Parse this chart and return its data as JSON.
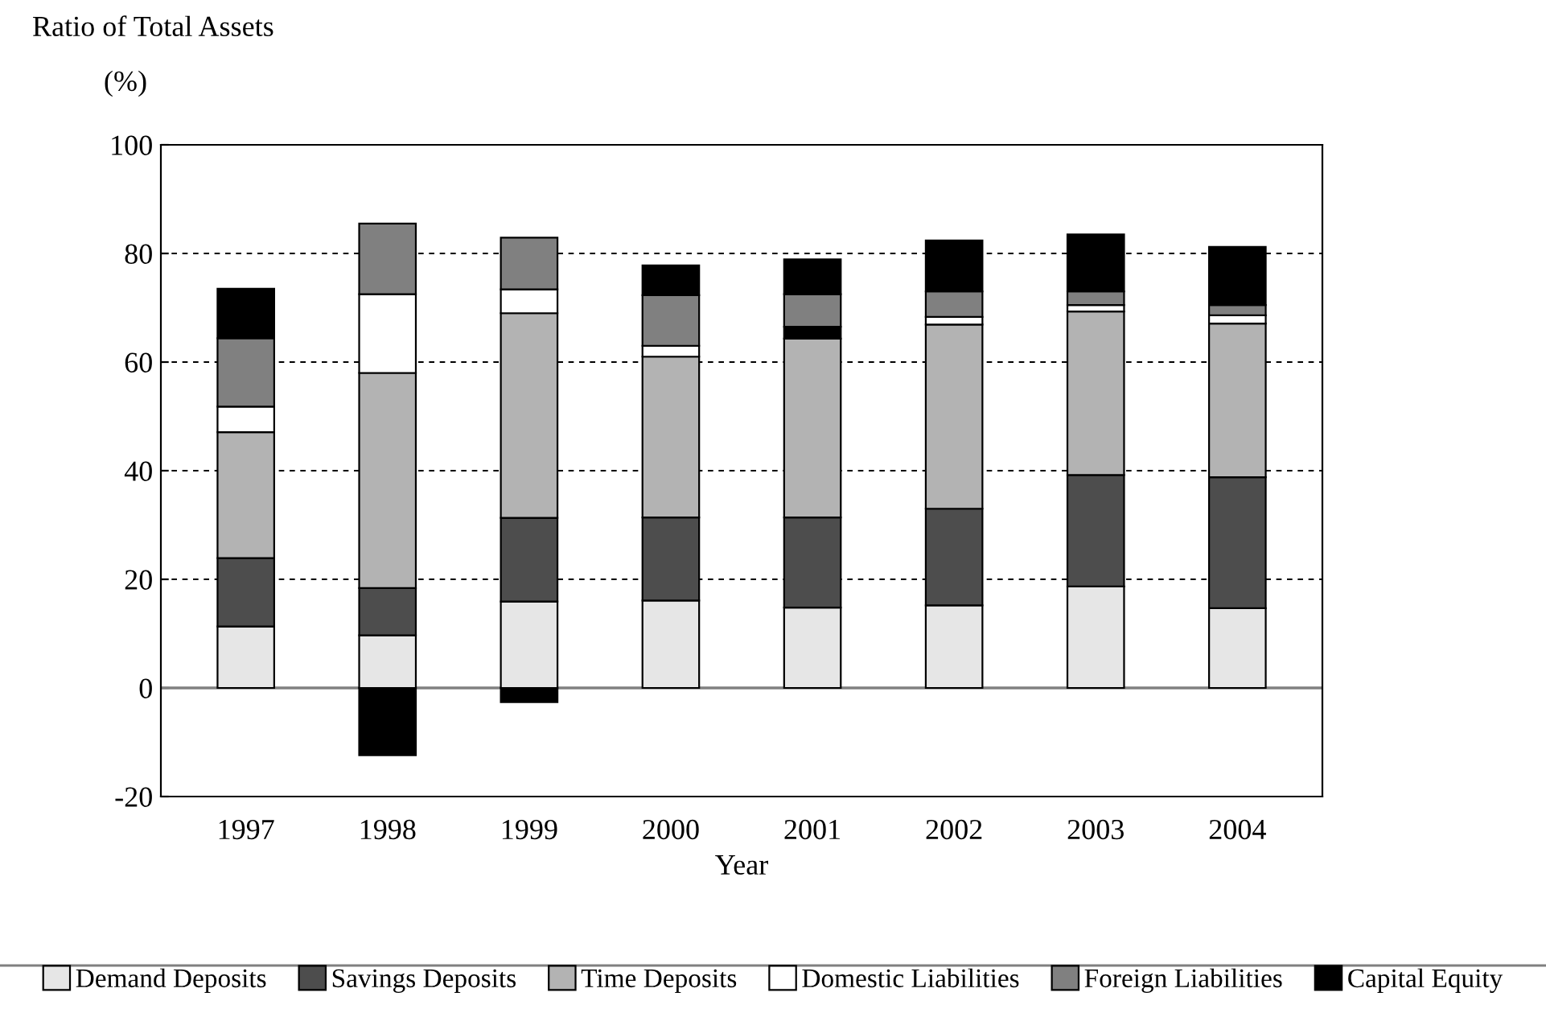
{
  "chart_data": {
    "type": "bar",
    "stacked": true,
    "ylabel": "Ratio of Total Assets",
    "xlabel": "Year",
    "annotations": [
      "(%)"
    ],
    "categories": [
      "1997",
      "1998",
      "1999",
      "2000",
      "2001",
      "2002",
      "2003",
      "2004"
    ],
    "series": [
      {
        "name": "Demand Deposits",
        "color": "#e6e6e6",
        "values": [
          11.3,
          9.7,
          15.9,
          16.1,
          14.8,
          15.2,
          18.7,
          14.7
        ]
      },
      {
        "name": "Savings Deposits",
        "color": "#4d4d4d",
        "values": [
          12.6,
          8.7,
          15.4,
          15.3,
          16.6,
          17.8,
          20.5,
          24.1
        ]
      },
      {
        "name": "Time Deposits",
        "color": "#b3b3b3",
        "values": [
          23.2,
          39.6,
          37.7,
          29.6,
          32.9,
          33.9,
          30.1,
          28.3
        ]
      },
      {
        "name": "Domestic Liabilities",
        "color": "#ffffff",
        "colors": [
          "#ffffff",
          "#ffffff",
          "#ffffff",
          "#ffffff",
          "#000000",
          "#ffffff",
          "#ffffff",
          "#ffffff"
        ],
        "values": [
          4.7,
          14.5,
          4.4,
          2.0,
          2.2,
          1.4,
          1.2,
          1.5
        ]
      },
      {
        "name": "Foreign Liabilities",
        "color": "#808080",
        "values": [
          12.6,
          13.0,
          9.5,
          9.3,
          6.0,
          4.7,
          2.5,
          1.9
        ]
      },
      {
        "name": "Capital Equity",
        "color": "#000000",
        "values": [
          9.1,
          -12.4,
          -2.6,
          5.5,
          6.4,
          9.4,
          10.5,
          10.7
        ]
      }
    ],
    "ylim": [
      -20,
      100
    ],
    "yticks": [
      -20,
      0,
      20,
      40,
      60,
      80,
      100
    ],
    "grid": "y",
    "legend": "bottom",
    "ref_lines": [
      {
        "axis": "y",
        "value": 0,
        "color": "#808080",
        "line_style": "solid"
      }
    ]
  }
}
